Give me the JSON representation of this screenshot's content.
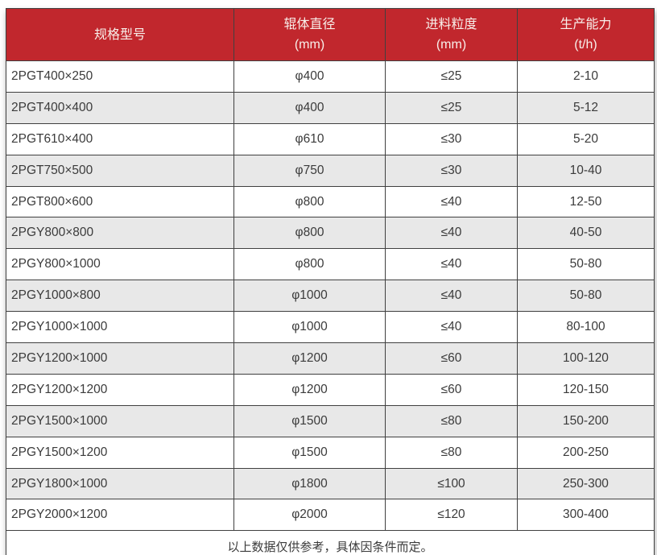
{
  "chart_data": {
    "type": "table",
    "columns": [
      {
        "title": "规格型号",
        "unit": ""
      },
      {
        "title": "辊体直径",
        "unit": "(mm)"
      },
      {
        "title": "进料粒度",
        "unit": "(mm)"
      },
      {
        "title": "生产能力",
        "unit": "(t/h)"
      }
    ],
    "rows": [
      [
        "2PGT400×250",
        "φ400",
        "≤25",
        "2-10"
      ],
      [
        "2PGT400×400",
        "φ400",
        "≤25",
        "5-12"
      ],
      [
        "2PGT610×400",
        "φ610",
        "≤30",
        "5-20"
      ],
      [
        "2PGT750×500",
        "φ750",
        "≤30",
        "10-40"
      ],
      [
        "2PGT800×600",
        "φ800",
        "≤40",
        "12-50"
      ],
      [
        "2PGY800×800",
        "φ800",
        "≤40",
        "40-50"
      ],
      [
        "2PGY800×1000",
        "φ800",
        "≤40",
        "50-80"
      ],
      [
        "2PGY1000×800",
        "φ1000",
        "≤40",
        "50-80"
      ],
      [
        "2PGY1000×1000",
        "φ1000",
        "≤40",
        "80-100"
      ],
      [
        "2PGY1200×1000",
        "φ1200",
        "≤60",
        "100-120"
      ],
      [
        "2PGY1200×1200",
        "φ1200",
        "≤60",
        "120-150"
      ],
      [
        "2PGY1500×1000",
        "φ1500",
        "≤80",
        "150-200"
      ],
      [
        "2PGY1500×1200",
        "φ1500",
        "≤80",
        "200-250"
      ],
      [
        "2PGY1800×1000",
        "φ1800",
        "≤100",
        "250-300"
      ],
      [
        "2PGY2000×1200",
        "φ2000",
        "≤120",
        "300-400"
      ]
    ],
    "footnote": "以上数据仅供参考，具体因条件而定。"
  },
  "colors": {
    "header_bg": "#C1272D",
    "header_text": "#F8EFEA",
    "border": "#404040",
    "text": "#3B3B3B",
    "row_bg": "#FFFFFF",
    "row_alt_bg": "#E8E8E8"
  }
}
